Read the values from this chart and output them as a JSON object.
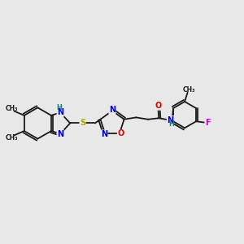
{
  "background_color": "#e8e8e8",
  "figsize": [
    3.0,
    3.0
  ],
  "dpi": 100,
  "bond_color": "#1a1a1a",
  "bond_width": 1.3,
  "atoms": {
    "N_blue": "#0000cc",
    "O_red": "#dd0000",
    "S_yellow": "#aaaa00",
    "F_magenta": "#cc00cc",
    "H_teal": "#008888",
    "C_black": "#1a1a1a"
  },
  "xlim": [
    0,
    10
  ],
  "ylim": [
    2,
    8
  ]
}
